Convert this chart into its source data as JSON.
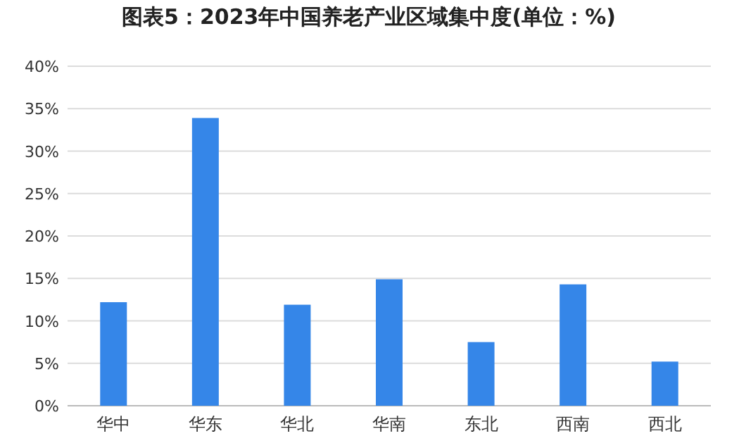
{
  "chart_data": {
    "type": "bar",
    "title": "图表5：2023年中国养老产业区域集中度(单位：%)",
    "categories": [
      "华中",
      "华东",
      "华北",
      "华南",
      "东北",
      "西南",
      "西北"
    ],
    "values": [
      12.2,
      33.9,
      11.9,
      14.9,
      7.5,
      14.3,
      5.2
    ],
    "color": "#3586e8",
    "ylim": [
      0,
      40
    ],
    "yticks": [
      {
        "value": 0,
        "label": "0%"
      },
      {
        "value": 5,
        "label": "5%"
      },
      {
        "value": 10,
        "label": "10%"
      },
      {
        "value": 15,
        "label": "15%"
      },
      {
        "value": 20,
        "label": "20%"
      },
      {
        "value": 25,
        "label": "25%"
      },
      {
        "value": 30,
        "label": "30%"
      },
      {
        "value": 35,
        "label": "35%"
      },
      {
        "value": 40,
        "label": "40%"
      }
    ],
    "grid": "y"
  }
}
